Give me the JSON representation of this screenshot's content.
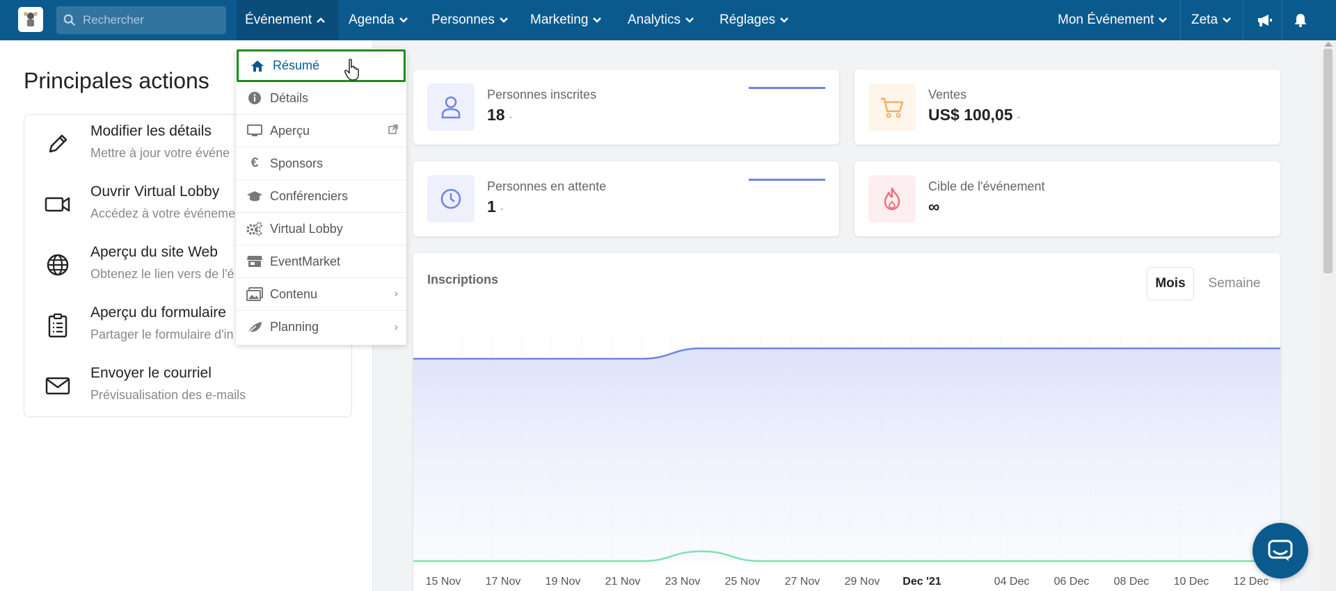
{
  "topbar": {
    "search_placeholder": "Rechercher",
    "nav": [
      {
        "label": "Événement"
      },
      {
        "label": "Agenda"
      },
      {
        "label": "Personnes"
      },
      {
        "label": "Marketing"
      },
      {
        "label": "Analytics"
      },
      {
        "label": "Réglages"
      }
    ],
    "my_event": "Mon Événement",
    "user": "Zeta"
  },
  "left": {
    "title": "Principales actions",
    "actions": [
      {
        "title": "Modifier les détails",
        "desc": "Mettre à jour votre événe",
        "icon": "pencil-icon"
      },
      {
        "title": "Ouvrir Virtual Lobby",
        "desc": "Accédez à votre événeme",
        "icon": "video-camera-icon"
      },
      {
        "title": "Aperçu du site Web",
        "desc": "Obtenez le lien vers de l'é",
        "icon": "globe-icon"
      },
      {
        "title": "Aperçu du formulaire",
        "desc": "Partager le formulaire d'in",
        "icon": "clipboard-icon"
      },
      {
        "title": "Envoyer le courriel",
        "desc": "Prévisualisation des e-mails",
        "icon": "envelope-icon"
      }
    ]
  },
  "dropdown": {
    "items": [
      {
        "label": "Résumé",
        "icon": "home-icon",
        "selected": true
      },
      {
        "label": "Détails",
        "icon": "info-icon"
      },
      {
        "label": "Aperçu",
        "icon": "monitor-icon",
        "external": true
      },
      {
        "label": "Sponsors",
        "icon": "euro-icon"
      },
      {
        "label": "Conférenciers",
        "icon": "graduation-cap-icon"
      },
      {
        "label": "Virtual Lobby",
        "icon": "gears-icon"
      },
      {
        "label": "EventMarket",
        "icon": "store-icon"
      },
      {
        "label": "Contenu",
        "icon": "images-icon",
        "submenu": true
      },
      {
        "label": "Planning",
        "icon": "leaf-icon",
        "submenu": true
      }
    ]
  },
  "stats": [
    {
      "label": "Personnes inscrites",
      "value": "18",
      "dash": "-"
    },
    {
      "label": "Ventes",
      "value": "US$ 100,05",
      "dash": "-"
    },
    {
      "label": "Personnes en attente",
      "value": "1",
      "dash": "-"
    },
    {
      "label": "Cible de l'événement",
      "value": "∞"
    }
  ],
  "chart": {
    "title": "Inscriptions",
    "toggle_on": "Mois",
    "toggle_off": "Semaine"
  },
  "colors": {
    "topbar": "#0b5a8e",
    "accent": "#0b5a8e",
    "selected_border": "#1e8a1e",
    "series_blue": "#6f83e0",
    "series_green": "#7fe0b0"
  },
  "chart_data": {
    "type": "area",
    "title": "Inscriptions",
    "x": [
      "15 Nov",
      "17 Nov",
      "19 Nov",
      "21 Nov",
      "23 Nov",
      "25 Nov",
      "27 Nov",
      "29 Nov",
      "Dec '21",
      "04 Dec",
      "06 Dec",
      "08 Dec",
      "10 Dec",
      "12 Dec"
    ],
    "series": [
      {
        "values": [
          17,
          17,
          17,
          17,
          18,
          18,
          18,
          18,
          18,
          18,
          18,
          18,
          18,
          18
        ]
      },
      {
        "values": [
          0,
          0,
          0,
          0,
          1,
          0,
          0,
          0,
          0,
          0,
          0,
          0,
          0,
          0
        ]
      }
    ],
    "grid": true
  }
}
